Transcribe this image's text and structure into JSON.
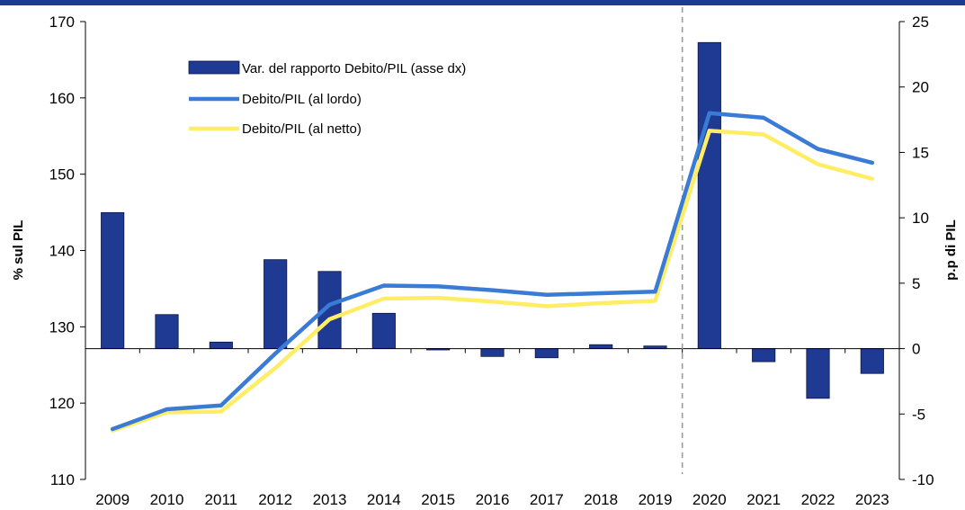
{
  "chart_data": {
    "type": "bar+line",
    "title": "",
    "categories": [
      "2009",
      "2010",
      "2011",
      "2012",
      "2013",
      "2014",
      "2015",
      "2016",
      "2017",
      "2018",
      "2019",
      "2020",
      "2021",
      "2022",
      "2023"
    ],
    "bars": {
      "name": "Var. del rapporto Debito/PIL (asse dx)",
      "axis": "right",
      "color": "#1f3a93",
      "values": [
        10.4,
        2.6,
        0.5,
        6.8,
        5.9,
        2.7,
        -0.1,
        -0.6,
        -0.7,
        0.3,
        0.2,
        23.4,
        -1.0,
        -3.8,
        -1.9
      ]
    },
    "series": [
      {
        "name": "Debito/PIL (al lordo)",
        "axis": "left",
        "color": "#3a7bd5",
        "values": [
          116.6,
          119.2,
          119.7,
          126.5,
          132.9,
          135.4,
          135.3,
          134.8,
          134.2,
          134.4,
          134.6,
          158.0,
          157.4,
          153.3,
          151.5
        ]
      },
      {
        "name": "Debito/PIL (al netto)",
        "axis": "left",
        "color": "#ffed66",
        "values": [
          116.4,
          118.8,
          118.9,
          124.6,
          131.0,
          133.7,
          133.8,
          133.3,
          132.7,
          133.1,
          133.4,
          155.7,
          155.2,
          151.3,
          149.4
        ]
      }
    ],
    "y_left": {
      "label": "% sul PIL",
      "min": 110,
      "max": 170,
      "ticks": [
        110,
        120,
        130,
        140,
        150,
        160,
        170
      ]
    },
    "y_right": {
      "label": "p.p di PIL",
      "min": -10,
      "max": 25,
      "ticks": [
        -10,
        -5,
        0,
        5,
        10,
        15,
        20,
        25
      ]
    },
    "vline_after": "2019",
    "legend_position": "top-left"
  }
}
